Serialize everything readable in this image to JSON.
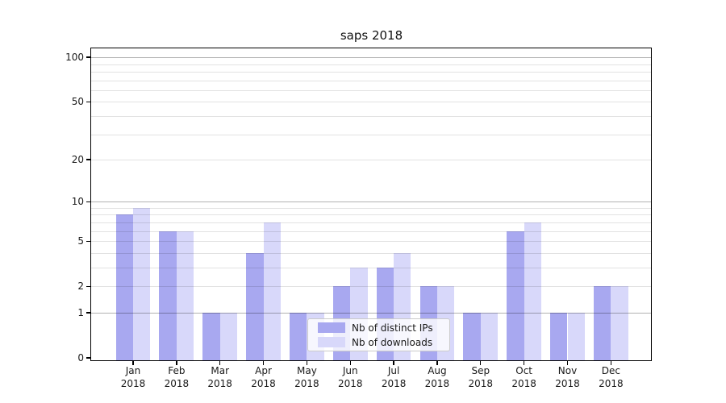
{
  "chart_data": {
    "type": "bar",
    "title": "saps 2018",
    "categories": [
      "Jan",
      "Feb",
      "Mar",
      "Apr",
      "May",
      "Jun",
      "Jul",
      "Aug",
      "Sep",
      "Oct",
      "Nov",
      "Dec"
    ],
    "category_year": "2018",
    "series": [
      {
        "name": "Nb of distinct IPs",
        "color": "#a8a8f0",
        "values": [
          8,
          6,
          1,
          4,
          1,
          2,
          3,
          2,
          1,
          6,
          1,
          2
        ]
      },
      {
        "name": "Nb of downloads",
        "color": "#d8d8fa",
        "values": [
          9,
          6,
          1,
          7,
          1,
          3,
          4,
          2,
          1,
          7,
          1,
          2
        ]
      }
    ],
    "yscale": "log1p",
    "ylim": [
      0,
      115
    ],
    "ytick_labels": [
      0,
      1,
      2,
      5,
      10,
      20,
      50,
      100
    ],
    "grid_major_ticks": [
      1,
      10,
      100
    ],
    "grid_minor_ticks": [
      2,
      3,
      4,
      5,
      6,
      7,
      8,
      9,
      20,
      30,
      40,
      50,
      60,
      70,
      80,
      90
    ],
    "grid": "on",
    "legend_position": "lower center inside plot",
    "bar_colors_note": {
      "accent_dark": "#a8a8f0",
      "accent_light": "#d8d8fa"
    }
  }
}
